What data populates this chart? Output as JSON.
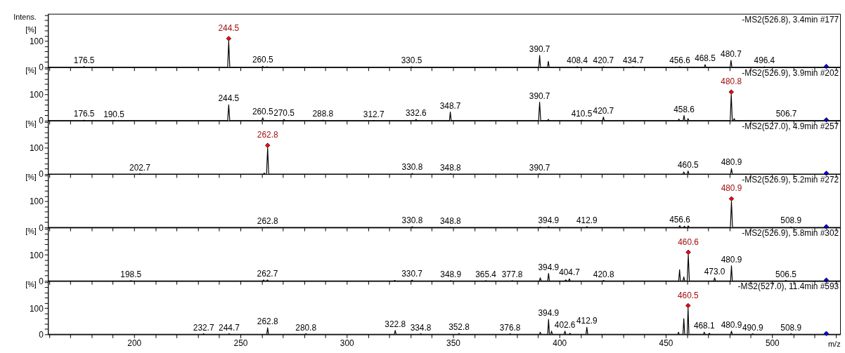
{
  "chart_data": [
    {
      "type": "line",
      "title": "-MS2(526.8), 3.4min #177",
      "ylabel": "Intens.\n[%]",
      "tick_labels": "y",
      "xlim": [
        159.5,
        532
      ],
      "ylim": [
        0,
        205
      ],
      "yticks": [
        0,
        {
          "value": 20,
          "label": null
        },
        {
          "value": 40,
          "label": null
        },
        {
          "value": 60,
          "label": null
        },
        {
          "value": 80,
          "label": null
        },
        100,
        {
          "value": 120,
          "label": null
        },
        {
          "value": 140,
          "label": null
        },
        {
          "value": 160,
          "label": null
        },
        {
          "value": 180,
          "label": null
        },
        {
          "value": 200,
          "label": null
        }
      ],
      "xticks": [
        {
          "value": 160,
          "label": null
        },
        {
          "value": 170,
          "label": null
        },
        {
          "value": 180,
          "label": null
        },
        {
          "value": 190,
          "label": null
        },
        200,
        {
          "value": 210,
          "label": null
        },
        {
          "value": 220,
          "label": null
        },
        {
          "value": 230,
          "label": null
        },
        {
          "value": 240,
          "label": null
        },
        250,
        {
          "value": 260,
          "label": null
        },
        {
          "value": 270,
          "label": null
        },
        {
          "value": 280,
          "label": null
        },
        {
          "value": 290,
          "label": null
        },
        300,
        {
          "value": 310,
          "label": null
        },
        {
          "value": 320,
          "label": null
        },
        {
          "value": 330,
          "label": null
        },
        {
          "value": 340,
          "label": null
        },
        350,
        {
          "value": 360,
          "label": null
        },
        {
          "value": 370,
          "label": null
        },
        {
          "value": 380,
          "label": null
        },
        {
          "value": 390,
          "label": null
        },
        400,
        {
          "value": 410,
          "label": null
        },
        {
          "value": 420,
          "label": null
        },
        {
          "value": 430,
          "label": null
        },
        {
          "value": 440,
          "label": null
        },
        450,
        {
          "value": 460,
          "label": null
        },
        {
          "value": 470,
          "label": null
        },
        {
          "value": 480,
          "label": null
        },
        {
          "value": 490,
          "label": null
        },
        500,
        {
          "value": 510,
          "label": null
        },
        {
          "value": 520,
          "label": null
        },
        {
          "value": 530,
          "label": null
        }
      ],
      "series": [
        {
          "type": "line",
          "color": "#000000",
          "x": [
            159.5,
            176.1,
            176.5,
            176.9,
            244.0,
            244.5,
            245.0,
            260.1,
            260.5,
            260.9,
            262.1,
            262.5,
            262.9,
            330.1,
            330.5,
            330.9,
            390.3,
            390.7,
            391.1,
            394.4,
            394.8,
            395.2,
            408.0,
            408.4,
            408.8,
            420.3,
            420.7,
            421.1,
            434.3,
            434.7,
            435.1,
            456.2,
            456.6,
            457.0,
            468.1,
            468.5,
            468.9,
            480.3,
            480.7,
            481.1,
            496.0,
            496.4,
            496.8,
            532
          ],
          "values": [
            0,
            0,
            3,
            0,
            0,
            100,
            0,
            0,
            4,
            0,
            0,
            2,
            0,
            0,
            2,
            0,
            0,
            45,
            0,
            0,
            23,
            0,
            0,
            2,
            0,
            0,
            2,
            0,
            0,
            2,
            0,
            0,
            2,
            0,
            0,
            10,
            0,
            0,
            26,
            0,
            0,
            2,
            0,
            0
          ]
        },
        {
          "type": "scatter",
          "marker": "diamond",
          "colors": [
            "#ff0000",
            "#0000ff"
          ],
          "x": [
            244.5,
            525.5
          ],
          "values": [
            110,
            3
          ]
        }
      ],
      "annotations": [
        {
          "text": "244.5",
          "x": 244.5,
          "y": 110
        },
        {
          "text": "176.5",
          "x": 176.5,
          "y": 3
        },
        {
          "text": "260.5",
          "x": 260.5,
          "y": 4
        },
        {
          "text": "330.5",
          "x": 330.5,
          "y": 2
        },
        {
          "text": "390.7",
          "x": 390.7,
          "y": 45
        },
        {
          "text": "408.4",
          "x": 408.4,
          "y": 2
        },
        {
          "text": "420.7",
          "x": 420.7,
          "y": 2
        },
        {
          "text": "434.7",
          "x": 434.7,
          "y": 2
        },
        {
          "text": "456.6",
          "x": 456.6,
          "y": 2
        },
        {
          "text": "468.5",
          "x": 468.5,
          "y": 10
        },
        {
          "text": "480.7",
          "x": 480.7,
          "y": 26
        },
        {
          "text": "496.4",
          "x": 496.4,
          "y": 2
        }
      ]
    },
    {
      "type": "line",
      "title": "-MS2(526.9), 3.9min #202",
      "ylabel": "[%]",
      "tick_labels": "y",
      "xlim": [
        159.5,
        532
      ],
      "ylim": [
        0,
        205
      ],
      "yticks": [
        0,
        {
          "value": 20,
          "label": null
        },
        {
          "value": 40,
          "label": null
        },
        {
          "value": 60,
          "label": null
        },
        {
          "value": 80,
          "label": null
        },
        100,
        {
          "value": 120,
          "label": null
        },
        {
          "value": 140,
          "label": null
        },
        {
          "value": 160,
          "label": null
        },
        {
          "value": 180,
          "label": null
        },
        {
          "value": 200,
          "label": null
        }
      ],
      "xticks": [
        {
          "value": 160,
          "label": null
        },
        {
          "value": 170,
          "label": null
        },
        {
          "value": 180,
          "label": null
        },
        {
          "value": 190,
          "label": null
        },
        200,
        {
          "value": 210,
          "label": null
        },
        {
          "value": 220,
          "label": null
        },
        {
          "value": 230,
          "label": null
        },
        {
          "value": 240,
          "label": null
        },
        250,
        {
          "value": 260,
          "label": null
        },
        {
          "value": 270,
          "label": null
        },
        {
          "value": 280,
          "label": null
        },
        {
          "value": 290,
          "label": null
        },
        300,
        {
          "value": 310,
          "label": null
        },
        {
          "value": 320,
          "label": null
        },
        {
          "value": 330,
          "label": null
        },
        {
          "value": 340,
          "label": null
        },
        350,
        {
          "value": 360,
          "label": null
        },
        {
          "value": 370,
          "label": null
        },
        {
          "value": 380,
          "label": null
        },
        {
          "value": 390,
          "label": null
        },
        400,
        {
          "value": 410,
          "label": null
        },
        {
          "value": 420,
          "label": null
        },
        {
          "value": 430,
          "label": null
        },
        {
          "value": 440,
          "label": null
        },
        450,
        {
          "value": 460,
          "label": null
        },
        {
          "value": 470,
          "label": null
        },
        {
          "value": 480,
          "label": null
        },
        {
          "value": 490,
          "label": null
        },
        500,
        {
          "value": 510,
          "label": null
        },
        {
          "value": 520,
          "label": null
        },
        {
          "value": 530,
          "label": null
        }
      ],
      "series": [
        {
          "type": "line",
          "color": "#000000",
          "x": [
            159.5,
            176.1,
            176.5,
            176.9,
            190.1,
            190.5,
            190.9,
            244.0,
            244.5,
            245.0,
            260.1,
            260.5,
            260.9,
            270.1,
            270.5,
            270.9,
            288.4,
            288.8,
            289.2,
            312.3,
            312.7,
            313.1,
            332.2,
            332.6,
            333.0,
            348.3,
            348.7,
            349.1,
            390.2,
            390.7,
            391.2,
            394.4,
            394.8,
            395.2,
            410.1,
            410.5,
            410.9,
            420.3,
            420.7,
            421.1,
            455.8,
            456.2,
            456.6,
            458.2,
            458.6,
            459.0,
            460.1,
            460.5,
            460.9,
            480.3,
            480.8,
            481.3,
            481.8,
            482.2,
            482.6,
            506.3,
            506.7,
            507.1,
            532
          ],
          "values": [
            0,
            0,
            2,
            0,
            0,
            1,
            0,
            0,
            61,
            0,
            0,
            11,
            0,
            0,
            5,
            0,
            0,
            2,
            0,
            0,
            1,
            0,
            0,
            5,
            0,
            0,
            33,
            0,
            0,
            71,
            0,
            0,
            5,
            0,
            0,
            2,
            0,
            0,
            14,
            0,
            0,
            6,
            0,
            0,
            20,
            0,
            0,
            8,
            0,
            0,
            100,
            0,
            0,
            8,
            0,
            0,
            2,
            0,
            0
          ]
        },
        {
          "type": "scatter",
          "marker": "diamond",
          "colors": [
            "#ff0000",
            "#0000ff"
          ],
          "x": [
            480.8,
            525.5
          ],
          "values": [
            110,
            3
          ]
        }
      ],
      "annotations": [
        {
          "text": "480.8",
          "x": 480.8,
          "y": 110
        },
        {
          "text": "176.5",
          "x": 176.5,
          "y": 2
        },
        {
          "text": "190.5",
          "x": 190.5,
          "y": 1
        },
        {
          "text": "244.5",
          "x": 244.5,
          "y": 61
        },
        {
          "text": "260.5",
          "x": 260.5,
          "y": 11
        },
        {
          "text": "270.5",
          "x": 270.5,
          "y": 5
        },
        {
          "text": "288.8",
          "x": 288.8,
          "y": 2
        },
        {
          "text": "312.7",
          "x": 312.7,
          "y": 1
        },
        {
          "text": "332.6",
          "x": 332.6,
          "y": 5
        },
        {
          "text": "348.7",
          "x": 348.7,
          "y": 33
        },
        {
          "text": "390.7",
          "x": 390.7,
          "y": 71
        },
        {
          "text": "410.5",
          "x": 410.5,
          "y": 2
        },
        {
          "text": "420.7",
          "x": 420.7,
          "y": 14
        },
        {
          "text": "458.6",
          "x": 458.6,
          "y": 20
        },
        {
          "text": "506.7",
          "x": 506.7,
          "y": 2
        }
      ]
    },
    {
      "type": "line",
      "title": "-MS2(527.0), 4.9min #257",
      "ylabel": "[%]",
      "tick_labels": "y",
      "xlim": [
        159.5,
        532
      ],
      "ylim": [
        0,
        205
      ],
      "yticks": [
        0,
        {
          "value": 20,
          "label": null
        },
        {
          "value": 40,
          "label": null
        },
        {
          "value": 60,
          "label": null
        },
        {
          "value": 80,
          "label": null
        },
        100,
        {
          "value": 120,
          "label": null
        },
        {
          "value": 140,
          "label": null
        },
        {
          "value": 160,
          "label": null
        },
        {
          "value": 180,
          "label": null
        },
        {
          "value": 200,
          "label": null
        }
      ],
      "xticks": [
        {
          "value": 160,
          "label": null
        },
        {
          "value": 170,
          "label": null
        },
        {
          "value": 180,
          "label": null
        },
        {
          "value": 190,
          "label": null
        },
        200,
        {
          "value": 210,
          "label": null
        },
        {
          "value": 220,
          "label": null
        },
        {
          "value": 230,
          "label": null
        },
        {
          "value": 240,
          "label": null
        },
        250,
        {
          "value": 260,
          "label": null
        },
        {
          "value": 270,
          "label": null
        },
        {
          "value": 280,
          "label": null
        },
        {
          "value": 290,
          "label": null
        },
        300,
        {
          "value": 310,
          "label": null
        },
        {
          "value": 320,
          "label": null
        },
        {
          "value": 330,
          "label": null
        },
        {
          "value": 340,
          "label": null
        },
        350,
        {
          "value": 360,
          "label": null
        },
        {
          "value": 370,
          "label": null
        },
        {
          "value": 380,
          "label": null
        },
        {
          "value": 390,
          "label": null
        },
        400,
        {
          "value": 410,
          "label": null
        },
        {
          "value": 420,
          "label": null
        },
        {
          "value": 430,
          "label": null
        },
        {
          "value": 440,
          "label": null
        },
        450,
        {
          "value": 460,
          "label": null
        },
        {
          "value": 470,
          "label": null
        },
        {
          "value": 480,
          "label": null
        },
        {
          "value": 490,
          "label": null
        },
        500,
        {
          "value": 510,
          "label": null
        },
        {
          "value": 520,
          "label": null
        },
        {
          "value": 530,
          "label": null
        }
      ],
      "series": [
        {
          "type": "line",
          "color": "#000000",
          "x": [
            159.5,
            202.3,
            202.7,
            203.1,
            260.8,
            261.2,
            261.6,
            262.3,
            262.8,
            263.3,
            330.4,
            330.8,
            331.2,
            348.4,
            348.8,
            349.2,
            390.3,
            390.7,
            391.1,
            458.1,
            458.5,
            458.9,
            460.1,
            460.5,
            460.9,
            480.5,
            480.9,
            481.3,
            532
          ],
          "values": [
            0,
            0,
            1,
            0,
            0,
            4,
            0,
            0,
            100,
            0,
            0,
            2,
            0,
            0,
            1,
            0,
            0,
            1,
            0,
            0,
            8,
            0,
            0,
            12,
            0,
            0,
            21,
            0,
            0
          ]
        },
        {
          "type": "scatter",
          "marker": "diamond",
          "colors": [
            "#ff0000",
            "#0000ff"
          ],
          "x": [
            262.8,
            525.5
          ],
          "values": [
            110,
            3
          ]
        }
      ],
      "annotations": [
        {
          "text": "262.8",
          "x": 262.8,
          "y": 110
        },
        {
          "text": "202.7",
          "x": 202.7,
          "y": 1
        },
        {
          "text": "330.8",
          "x": 330.8,
          "y": 2
        },
        {
          "text": "348.8",
          "x": 348.8,
          "y": 1
        },
        {
          "text": "390.7",
          "x": 390.7,
          "y": 1
        },
        {
          "text": "460.5",
          "x": 460.5,
          "y": 12
        },
        {
          "text": "480.9",
          "x": 480.9,
          "y": 21
        }
      ]
    },
    {
      "type": "line",
      "title": "-MS2(526.9), 5.2min #272",
      "ylabel": "[%]",
      "tick_labels": "y",
      "xlim": [
        159.5,
        532
      ],
      "ylim": [
        0,
        205
      ],
      "yticks": [
        0,
        {
          "value": 20,
          "label": null
        },
        {
          "value": 40,
          "label": null
        },
        {
          "value": 60,
          "label": null
        },
        {
          "value": 80,
          "label": null
        },
        100,
        {
          "value": 120,
          "label": null
        },
        {
          "value": 140,
          "label": null
        },
        {
          "value": 160,
          "label": null
        },
        {
          "value": 180,
          "label": null
        },
        {
          "value": 200,
          "label": null
        }
      ],
      "xticks": [
        {
          "value": 160,
          "label": null
        },
        {
          "value": 170,
          "label": null
        },
        {
          "value": 180,
          "label": null
        },
        {
          "value": 190,
          "label": null
        },
        200,
        {
          "value": 210,
          "label": null
        },
        {
          "value": 220,
          "label": null
        },
        {
          "value": 230,
          "label": null
        },
        {
          "value": 240,
          "label": null
        },
        250,
        {
          "value": 260,
          "label": null
        },
        {
          "value": 270,
          "label": null
        },
        {
          "value": 280,
          "label": null
        },
        {
          "value": 290,
          "label": null
        },
        300,
        {
          "value": 310,
          "label": null
        },
        {
          "value": 320,
          "label": null
        },
        {
          "value": 330,
          "label": null
        },
        {
          "value": 340,
          "label": null
        },
        350,
        {
          "value": 360,
          "label": null
        },
        {
          "value": 370,
          "label": null
        },
        {
          "value": 380,
          "label": null
        },
        {
          "value": 390,
          "label": null
        },
        400,
        {
          "value": 410,
          "label": null
        },
        {
          "value": 420,
          "label": null
        },
        {
          "value": 430,
          "label": null
        },
        {
          "value": 440,
          "label": null
        },
        450,
        {
          "value": 460,
          "label": null
        },
        {
          "value": 470,
          "label": null
        },
        {
          "value": 480,
          "label": null
        },
        {
          "value": 490,
          "label": null
        },
        500,
        {
          "value": 510,
          "label": null
        },
        {
          "value": 520,
          "label": null
        },
        {
          "value": 530,
          "label": null
        }
      ],
      "series": [
        {
          "type": "line",
          "color": "#000000",
          "x": [
            159.5,
            262.4,
            262.8,
            263.2,
            330.4,
            330.8,
            331.2,
            348.4,
            348.8,
            349.2,
            390.6,
            391.0,
            391.4,
            394.5,
            394.9,
            395.3,
            412.5,
            412.9,
            413.3,
            456.2,
            456.6,
            457.0,
            458.4,
            458.8,
            459.2,
            460.2,
            460.6,
            461.0,
            480.4,
            480.9,
            481.4,
            508.5,
            508.9,
            509.3,
            532
          ],
          "values": [
            0,
            0,
            1,
            0,
            0,
            3,
            0,
            0,
            1,
            0,
            0,
            2,
            0,
            0,
            3,
            0,
            0,
            3,
            0,
            0,
            7,
            0,
            0,
            5,
            0,
            0,
            6,
            0,
            0,
            100,
            0,
            0,
            2,
            0,
            0
          ]
        },
        {
          "type": "scatter",
          "marker": "diamond",
          "colors": [
            "#ff0000",
            "#0000ff"
          ],
          "x": [
            480.9,
            525.5
          ],
          "values": [
            110,
            3
          ]
        }
      ],
      "annotations": [
        {
          "text": "480.9",
          "x": 480.9,
          "y": 110
        },
        {
          "text": "262.8",
          "x": 262.8,
          "y": 1
        },
        {
          "text": "330.8",
          "x": 330.8,
          "y": 3
        },
        {
          "text": "348.8",
          "x": 348.8,
          "y": 1
        },
        {
          "text": "394.9",
          "x": 394.9,
          "y": 3
        },
        {
          "text": "412.9",
          "x": 412.9,
          "y": 3
        },
        {
          "text": "456.6",
          "x": 456.6,
          "y": 7
        },
        {
          "text": "508.9",
          "x": 508.9,
          "y": 2
        }
      ]
    },
    {
      "type": "line",
      "title": "-MS2(526.9), 5.8min #302",
      "ylabel": "[%]",
      "tick_labels": "y",
      "xlim": [
        159.5,
        532
      ],
      "ylim": [
        0,
        205
      ],
      "yticks": [
        0,
        {
          "value": 20,
          "label": null
        },
        {
          "value": 40,
          "label": null
        },
        {
          "value": 60,
          "label": null
        },
        {
          "value": 80,
          "label": null
        },
        100,
        {
          "value": 120,
          "label": null
        },
        {
          "value": 140,
          "label": null
        },
        {
          "value": 160,
          "label": null
        },
        {
          "value": 180,
          "label": null
        },
        {
          "value": 200,
          "label": null
        }
      ],
      "xticks": [
        {
          "value": 160,
          "label": null
        },
        {
          "value": 170,
          "label": null
        },
        {
          "value": 180,
          "label": null
        },
        {
          "value": 190,
          "label": null
        },
        200,
        {
          "value": 210,
          "label": null
        },
        {
          "value": 220,
          "label": null
        },
        {
          "value": 230,
          "label": null
        },
        {
          "value": 240,
          "label": null
        },
        250,
        {
          "value": 260,
          "label": null
        },
        {
          "value": 270,
          "label": null
        },
        {
          "value": 280,
          "label": null
        },
        {
          "value": 290,
          "label": null
        },
        300,
        {
          "value": 310,
          "label": null
        },
        {
          "value": 320,
          "label": null
        },
        {
          "value": 330,
          "label": null
        },
        {
          "value": 340,
          "label": null
        },
        350,
        {
          "value": 360,
          "label": null
        },
        {
          "value": 370,
          "label": null
        },
        {
          "value": 380,
          "label": null
        },
        {
          "value": 390,
          "label": null
        },
        400,
        {
          "value": 410,
          "label": null
        },
        {
          "value": 420,
          "label": null
        },
        {
          "value": 430,
          "label": null
        },
        {
          "value": 440,
          "label": null
        },
        450,
        {
          "value": 460,
          "label": null
        },
        {
          "value": 470,
          "label": null
        },
        {
          "value": 480,
          "label": null
        },
        {
          "value": 490,
          "label": null
        },
        500,
        {
          "value": 510,
          "label": null
        },
        {
          "value": 520,
          "label": null
        },
        {
          "value": 530,
          "label": null
        }
      ],
      "series": [
        {
          "type": "line",
          "color": "#000000",
          "x": [
            159.5,
            198.1,
            198.5,
            198.9,
            260.5,
            260.9,
            261.3,
            262.3,
            262.7,
            263.1,
            322.2,
            322.6,
            323.0,
            330.3,
            330.7,
            331.1,
            348.5,
            348.9,
            349.3,
            365.0,
            365.4,
            365.8,
            377.4,
            377.8,
            378.2,
            390.6,
            391.0,
            391.4,
            394.5,
            394.9,
            395.3,
            402.6,
            403.0,
            403.4,
            404.3,
            404.7,
            405.1,
            420.4,
            420.8,
            421.2,
            456.1,
            456.5,
            456.9,
            458.1,
            458.5,
            458.9,
            460.1,
            460.6,
            461.1,
            472.6,
            473.0,
            473.4,
            480.5,
            480.9,
            481.3,
            506.1,
            506.5,
            506.9,
            532
          ],
          "values": [
            0,
            0,
            1,
            0,
            0,
            4,
            0,
            0,
            4,
            0,
            0,
            2,
            0,
            0,
            3,
            0,
            0,
            1,
            0,
            0,
            1,
            0,
            0,
            1,
            0,
            0,
            12,
            0,
            0,
            29,
            0,
            0,
            4,
            0,
            0,
            8,
            0,
            0,
            2,
            0,
            0,
            43,
            0,
            0,
            15,
            0,
            0,
            100,
            0,
            0,
            12,
            0,
            0,
            58,
            0,
            0,
            2,
            0,
            0
          ]
        },
        {
          "type": "scatter",
          "marker": "diamond",
          "colors": [
            "#ff0000",
            "#0000ff"
          ],
          "x": [
            460.6,
            525.5
          ],
          "values": [
            110,
            3
          ]
        }
      ],
      "annotations": [
        {
          "text": "460.6",
          "x": 460.6,
          "y": 110
        },
        {
          "text": "198.5",
          "x": 198.5,
          "y": 1
        },
        {
          "text": "262.7",
          "x": 262.7,
          "y": 4
        },
        {
          "text": "330.7",
          "x": 330.7,
          "y": 3
        },
        {
          "text": "348.9",
          "x": 348.9,
          "y": 1
        },
        {
          "text": "365.4",
          "x": 365.4,
          "y": 1
        },
        {
          "text": "377.8",
          "x": 377.8,
          "y": 1
        },
        {
          "text": "394.9",
          "x": 394.9,
          "y": 29
        },
        {
          "text": "404.7",
          "x": 404.7,
          "y": 8
        },
        {
          "text": "420.8",
          "x": 420.8,
          "y": 2
        },
        {
          "text": "473.0",
          "x": 473.0,
          "y": 12
        },
        {
          "text": "480.9",
          "x": 480.9,
          "y": 58
        },
        {
          "text": "506.5",
          "x": 506.5,
          "y": 2
        }
      ]
    },
    {
      "type": "line",
      "title": "-MS2(527.0), 11.4min #593",
      "ylabel": "[%]",
      "xlabel": "m/z",
      "xlim": [
        159.5,
        532
      ],
      "ylim": [
        0,
        205
      ],
      "yticks": [
        0,
        {
          "value": 20,
          "label": null
        },
        {
          "value": 40,
          "label": null
        },
        {
          "value": 60,
          "label": null
        },
        {
          "value": 80,
          "label": null
        },
        100,
        {
          "value": 120,
          "label": null
        },
        {
          "value": 140,
          "label": null
        },
        {
          "value": 160,
          "label": null
        },
        {
          "value": 180,
          "label": null
        },
        {
          "value": 200,
          "label": null
        }
      ],
      "xticks": [
        {
          "value": 160,
          "label": null
        },
        {
          "value": 170,
          "label": null
        },
        {
          "value": 180,
          "label": null
        },
        {
          "value": 190,
          "label": null
        },
        200,
        {
          "value": 210,
          "label": null
        },
        {
          "value": 220,
          "label": null
        },
        {
          "value": 230,
          "label": null
        },
        {
          "value": 240,
          "label": null
        },
        250,
        {
          "value": 260,
          "label": null
        },
        {
          "value": 270,
          "label": null
        },
        {
          "value": 280,
          "label": null
        },
        {
          "value": 290,
          "label": null
        },
        300,
        {
          "value": 310,
          "label": null
        },
        {
          "value": 320,
          "label": null
        },
        {
          "value": 330,
          "label": null
        },
        {
          "value": 340,
          "label": null
        },
        350,
        {
          "value": 360,
          "label": null
        },
        {
          "value": 370,
          "label": null
        },
        {
          "value": 380,
          "label": null
        },
        {
          "value": 390,
          "label": null
        },
        400,
        {
          "value": 410,
          "label": null
        },
        {
          "value": 420,
          "label": null
        },
        {
          "value": 430,
          "label": null
        },
        {
          "value": 440,
          "label": null
        },
        450,
        {
          "value": 460,
          "label": null
        },
        {
          "value": 470,
          "label": null
        },
        {
          "value": 480,
          "label": null
        },
        {
          "value": 490,
          "label": null
        },
        500,
        {
          "value": 510,
          "label": null
        },
        {
          "value": 520,
          "label": null
        },
        {
          "value": 530,
          "label": null
        }
      ],
      "series": [
        {
          "type": "line",
          "color": "#000000",
          "x": [
            159.5,
            232.3,
            232.7,
            233.1,
            244.3,
            244.7,
            245.1,
            262.4,
            262.8,
            263.2,
            280.4,
            280.8,
            281.2,
            322.4,
            322.8,
            323.2,
            334.4,
            334.8,
            335.2,
            352.4,
            352.8,
            353.2,
            376.4,
            376.8,
            377.2,
            390.6,
            391.0,
            391.4,
            394.5,
            394.9,
            395.3,
            395.9,
            396.3,
            396.7,
            402.2,
            402.6,
            403.0,
            404.6,
            405.0,
            405.4,
            412.5,
            412.9,
            413.3,
            455.6,
            456.0,
            456.4,
            458.1,
            458.5,
            458.9,
            460.1,
            460.5,
            460.9,
            467.7,
            468.1,
            468.5,
            470.1,
            470.5,
            470.9,
            480.5,
            480.9,
            481.3,
            490.5,
            490.9,
            491.3,
            508.5,
            508.9,
            509.3,
            532
          ],
          "values": [
            0,
            0,
            2,
            0,
            0,
            2,
            0,
            0,
            25,
            0,
            0,
            2,
            0,
            0,
            15,
            0,
            0,
            2,
            0,
            0,
            3,
            0,
            0,
            2,
            0,
            0,
            8,
            0,
            0,
            57,
            0,
            0,
            12,
            0,
            0,
            12,
            0,
            0,
            4,
            0,
            0,
            27,
            0,
            0,
            8,
            0,
            0,
            60,
            0,
            0,
            100,
            0,
            0,
            8,
            0,
            0,
            4,
            0,
            0,
            12,
            0,
            0,
            2,
            0,
            0,
            2,
            0,
            0
          ]
        },
        {
          "type": "scatter",
          "marker": "diamond",
          "colors": [
            "#ff0000",
            "#0000ff"
          ],
          "x": [
            460.5,
            525.5
          ],
          "values": [
            110,
            3
          ]
        }
      ],
      "annotations": [
        {
          "text": "460.5",
          "x": 460.5,
          "y": 110
        },
        {
          "text": "232.7",
          "x": 232.7,
          "y": 2
        },
        {
          "text": "244.7",
          "x": 244.7,
          "y": 2
        },
        {
          "text": "262.8",
          "x": 262.8,
          "y": 25
        },
        {
          "text": "280.8",
          "x": 280.8,
          "y": 2
        },
        {
          "text": "322.8",
          "x": 322.8,
          "y": 15
        },
        {
          "text": "334.8",
          "x": 334.8,
          "y": 2
        },
        {
          "text": "352.8",
          "x": 352.8,
          "y": 3
        },
        {
          "text": "376.8",
          "x": 376.8,
          "y": 2
        },
        {
          "text": "394.9",
          "x": 394.9,
          "y": 57
        },
        {
          "text": "402.6",
          "x": 402.6,
          "y": 12
        },
        {
          "text": "412.9",
          "x": 412.9,
          "y": 27
        },
        {
          "text": "468.1",
          "x": 468.1,
          "y": 8
        },
        {
          "text": "480.9",
          "x": 480.9,
          "y": 12
        },
        {
          "text": "490.9",
          "x": 490.9,
          "y": 2
        },
        {
          "text": "508.9",
          "x": 508.9,
          "y": 2
        }
      ]
    }
  ]
}
